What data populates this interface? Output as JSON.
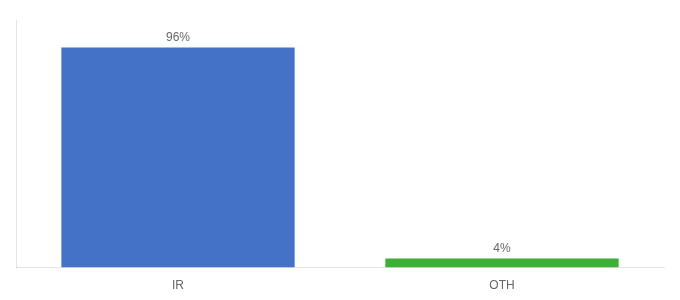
{
  "chart_data": {
    "type": "bar",
    "categories": [
      "IR",
      "OTH"
    ],
    "values": [
      96,
      4
    ],
    "colors": [
      "#4472c4",
      "#3cb034"
    ],
    "value_labels": [
      "96%",
      "4%"
    ],
    "ylim": [
      0,
      108
    ],
    "yticks": [],
    "grid": false,
    "data_labels": true,
    "tick_labels": "x"
  }
}
